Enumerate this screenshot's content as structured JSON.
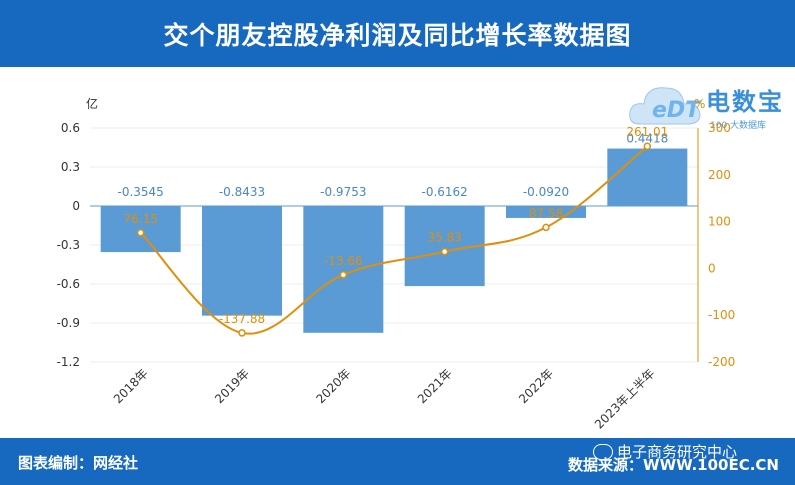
{
  "header": {
    "title": "交个朋友控股净利润及同比增长率数据图"
  },
  "footer": {
    "left": "图表编制：网经社",
    "right": "数据来源：WWW.100EC.CN",
    "wechat": "电子商务研究中心"
  },
  "logo": {
    "edt": "eDT",
    "main": "电数宝",
    "sub": "100 大数据库"
  },
  "colors": {
    "header": "#1769c0",
    "bar": "#5b9bd5",
    "line": "#e08f0b"
  },
  "chart_data": {
    "type": "bar",
    "categories": [
      "2018年",
      "2019年",
      "2020年",
      "2021年",
      "2022年",
      "2023年上半年"
    ],
    "series": [
      {
        "type": "bar",
        "axis": "left",
        "values": [
          -0.3545,
          -0.8433,
          -0.9753,
          -0.6162,
          -0.092,
          0.4418
        ],
        "labels": [
          "-0.3545",
          "-0.8433",
          "-0.9753",
          "-0.6162",
          "-0.0920",
          "0.4418"
        ]
      },
      {
        "type": "line",
        "axis": "right",
        "values": [
          76.15,
          -137.88,
          -13.66,
          35.83,
          87.58,
          261.01
        ],
        "labels": [
          "76.15",
          "-137.88",
          "-13.66",
          "35.83",
          "87.58",
          "261.01"
        ]
      }
    ],
    "y_left": {
      "unit": "亿",
      "ylim": [
        -1.2,
        0.6
      ],
      "ticks": [
        "0.6",
        "0.3",
        "0",
        "-0.3",
        "-0.6",
        "-0.9",
        "-1.2"
      ]
    },
    "y_right": {
      "unit": "%",
      "ylim": [
        -200,
        300
      ],
      "ticks": [
        "300",
        "200",
        "100",
        "0",
        "-100",
        "-200"
      ]
    },
    "grid": true
  }
}
